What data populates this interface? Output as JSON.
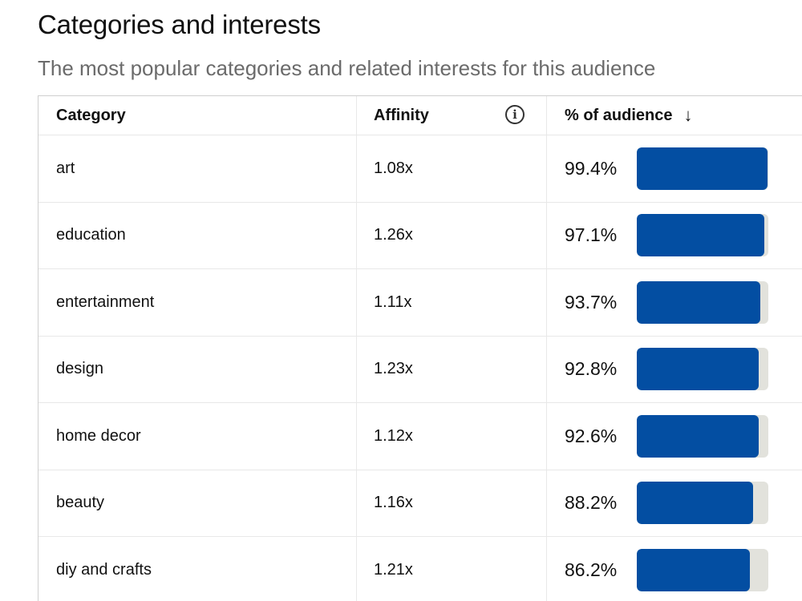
{
  "header": {
    "title": "Categories and interests",
    "subtitle": "The most popular categories and related interests for this audience"
  },
  "table": {
    "columns": {
      "category": "Category",
      "affinity": "Affinity",
      "audience": "% of audience"
    },
    "info_icon": "info-icon",
    "sort_icon": "arrow-down-icon",
    "sort_glyph": "↓",
    "info_glyph": "i",
    "bar_color": "#034ea2",
    "track_color": "#e2e2dc",
    "rows": [
      {
        "category": "art",
        "affinity": "1.08x",
        "percent_label": "99.4%",
        "percent": 99.4
      },
      {
        "category": "education",
        "affinity": "1.26x",
        "percent_label": "97.1%",
        "percent": 97.1
      },
      {
        "category": "entertainment",
        "affinity": "1.11x",
        "percent_label": "93.7%",
        "percent": 93.7
      },
      {
        "category": "design",
        "affinity": "1.23x",
        "percent_label": "92.8%",
        "percent": 92.8
      },
      {
        "category": "home decor",
        "affinity": "1.12x",
        "percent_label": "92.6%",
        "percent": 92.6
      },
      {
        "category": "beauty",
        "affinity": "1.16x",
        "percent_label": "88.2%",
        "percent": 88.2
      },
      {
        "category": "diy and crafts",
        "affinity": "1.21x",
        "percent_label": "86.2%",
        "percent": 86.2
      }
    ]
  }
}
